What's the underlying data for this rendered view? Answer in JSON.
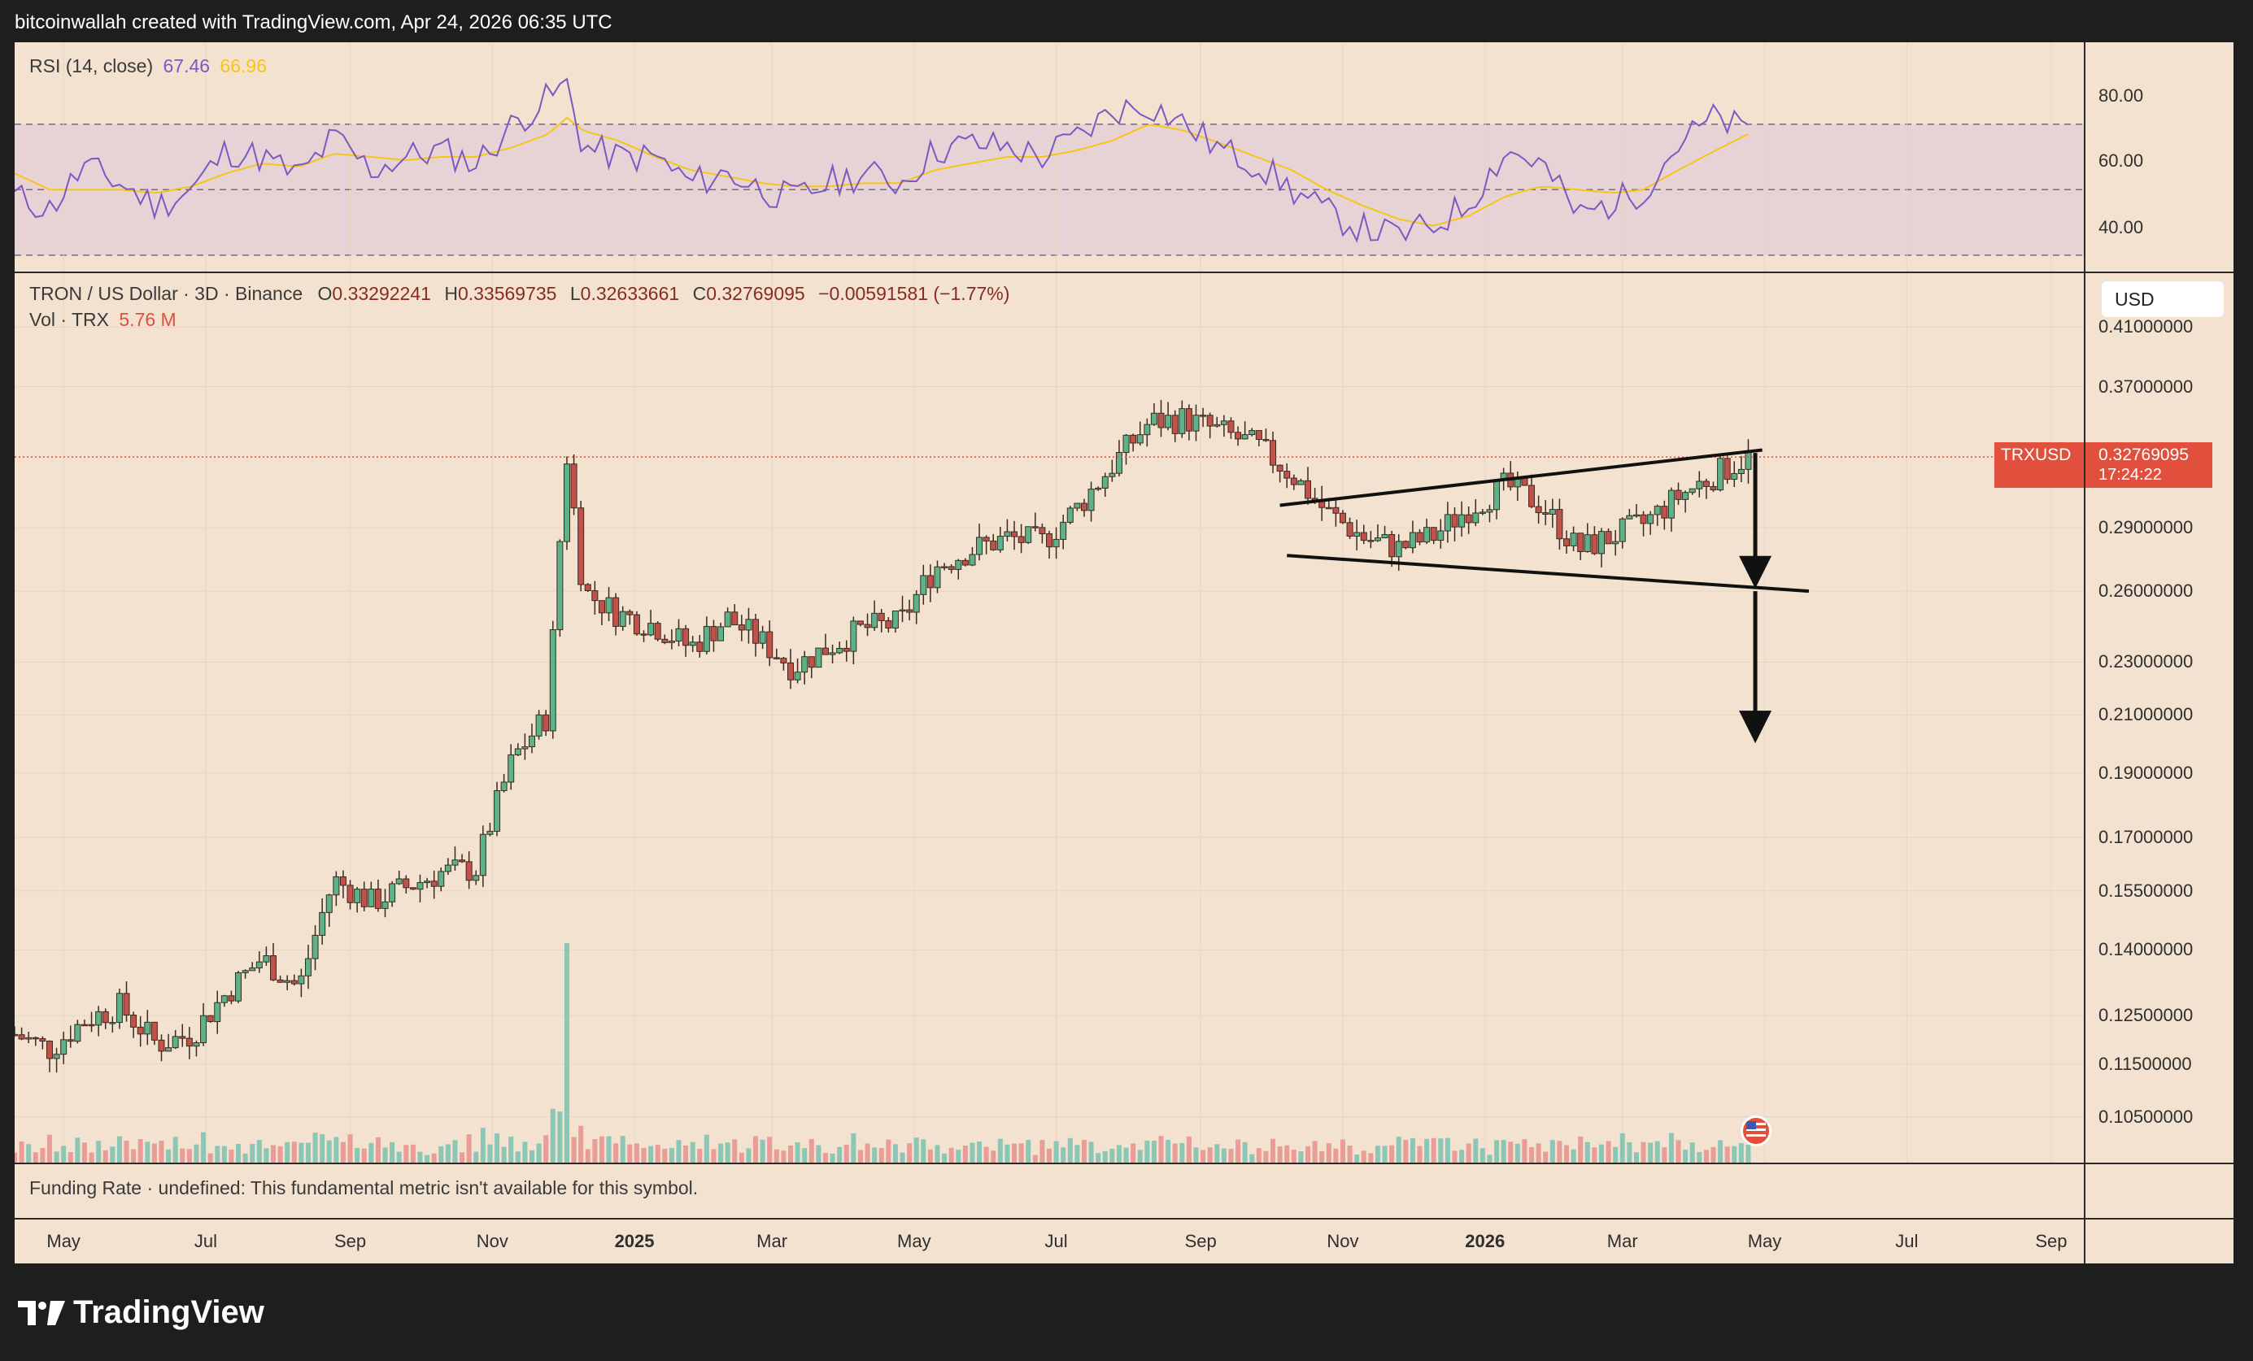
{
  "header": {
    "attribution": "bitcoinwallah created with TradingView.com, Apr 24, 2026 06:35 UTC"
  },
  "rsi": {
    "title": "RSI (14, close)",
    "value": "67.46",
    "ma_value": "66.96",
    "ticks": [
      "80.00",
      "60.00",
      "40.00"
    ],
    "colors": {
      "rsi": "#7e57c2",
      "ma": "#f5c518",
      "band": "#d9c6d9"
    }
  },
  "legend": {
    "symbol": "TRON / US Dollar · 3D · Binance",
    "o_label": "O",
    "o": "0.33292241",
    "h_label": "H",
    "h": "0.33569735",
    "l_label": "L",
    "l": "0.32633661",
    "c_label": "C",
    "c": "0.32769095",
    "change": "−0.00591581 (−1.77%)",
    "vol_label": "Vol · TRX",
    "vol": "5.76 M"
  },
  "price_axis": {
    "currency": "USD",
    "ticks": [
      "0.41000000",
      "0.37000000",
      "0.29000000",
      "0.26000000",
      "0.23000000",
      "0.21000000",
      "0.19000000",
      "0.17000000",
      "0.15500000",
      "0.14000000",
      "0.12500000",
      "0.11500000",
      "0.10500000"
    ],
    "last_symbol": "TRXUSD",
    "last_price": "0.32769095",
    "countdown": "17:24:22"
  },
  "funding": {
    "text": "Funding Rate · undefined: This fundamental metric isn't available for this symbol."
  },
  "time_axis": {
    "labels": [
      "May",
      "Jul",
      "Sep",
      "Nov",
      "2025",
      "Mar",
      "May",
      "Jul",
      "Sep",
      "Nov",
      "2026",
      "Mar",
      "May",
      "Jul",
      "Sep"
    ],
    "bold": [
      "2025",
      "2026"
    ]
  },
  "brand": {
    "name": "TradingView"
  },
  "chart_data": {
    "type": "candlestick",
    "title": "TRON / US Dollar · 3D · Binance",
    "scale": "log",
    "ylim": [
      0.097,
      0.45
    ],
    "colors": {
      "up": "#26a69a",
      "down": "#ef5350",
      "up_body": "#5cb38a",
      "down_body": "#c0524a"
    },
    "dates": [
      "2024-04-10",
      "2024-04-25",
      "2024-05-10",
      "2024-05-25",
      "2024-06-10",
      "2024-06-25",
      "2024-07-10",
      "2024-07-25",
      "2024-08-10",
      "2024-08-25",
      "2024-09-10",
      "2024-09-25",
      "2024-10-10",
      "2024-10-25",
      "2024-11-10",
      "2024-11-25",
      "2024-12-03",
      "2024-12-10",
      "2024-12-25",
      "2025-01-10",
      "2025-01-25",
      "2025-02-10",
      "2025-02-25",
      "2025-03-10",
      "2025-03-25",
      "2025-04-10",
      "2025-04-25",
      "2025-05-10",
      "2025-05-25",
      "2025-06-10",
      "2025-06-25",
      "2025-07-10",
      "2025-07-25",
      "2025-08-10",
      "2025-08-25",
      "2025-09-10",
      "2025-09-25",
      "2025-10-10",
      "2025-10-25",
      "2025-11-10",
      "2025-11-25",
      "2025-12-10",
      "2025-12-25",
      "2026-01-10",
      "2026-01-25",
      "2026-02-10",
      "2026-02-25",
      "2026-03-10",
      "2026-03-25",
      "2026-04-10",
      "2026-04-24"
    ],
    "close": [
      0.121,
      0.118,
      0.124,
      0.127,
      0.119,
      0.121,
      0.13,
      0.138,
      0.131,
      0.158,
      0.152,
      0.156,
      0.16,
      0.161,
      0.195,
      0.21,
      0.328,
      0.26,
      0.25,
      0.245,
      0.236,
      0.248,
      0.238,
      0.228,
      0.236,
      0.244,
      0.246,
      0.271,
      0.279,
      0.285,
      0.283,
      0.3,
      0.323,
      0.348,
      0.35,
      0.342,
      0.334,
      0.318,
      0.298,
      0.285,
      0.28,
      0.286,
      0.3,
      0.312,
      0.302,
      0.279,
      0.286,
      0.292,
      0.306,
      0.318,
      0.3277
    ],
    "rsi": [
      48,
      44,
      57,
      52,
      45,
      50,
      62,
      60,
      54,
      66,
      56,
      60,
      62,
      58,
      70,
      78,
      82,
      63,
      60,
      60,
      52,
      55,
      50,
      47,
      52,
      55,
      52,
      62,
      64,
      63,
      60,
      66,
      74,
      76,
      70,
      62,
      58,
      50,
      43,
      38,
      36,
      39,
      46,
      62,
      58,
      42,
      46,
      50,
      64,
      72,
      67.46
    ],
    "rsi_ma": [
      55,
      50,
      50,
      50,
      49,
      51,
      55,
      58,
      57,
      61,
      60,
      59,
      60,
      60,
      63,
      67,
      72,
      68,
      65,
      60,
      56,
      54,
      52,
      51,
      51,
      52,
      52,
      56,
      58,
      60,
      60,
      62,
      65,
      70,
      68,
      64,
      60,
      56,
      50,
      45,
      41,
      39,
      42,
      48,
      51,
      50,
      49,
      50,
      56,
      62,
      66.96
    ],
    "annotations": {
      "wedge_upper": [
        [
          "2025-10-05",
          0.3015
        ],
        [
          "2026-04-30",
          0.3317
        ]
      ],
      "wedge_lower": [
        [
          "2025-10-08",
          0.2765
        ],
        [
          "2026-05-20",
          0.26
        ]
      ],
      "arrow_1": [
        [
          "2026-04-27",
          0.33
        ],
        [
          "2026-04-27",
          0.2612
        ]
      ],
      "arrow_2": [
        [
          "2026-04-27",
          0.26
        ],
        [
          "2026-04-27",
          0.2
        ]
      ],
      "last_price_line": 0.32769095
    }
  }
}
